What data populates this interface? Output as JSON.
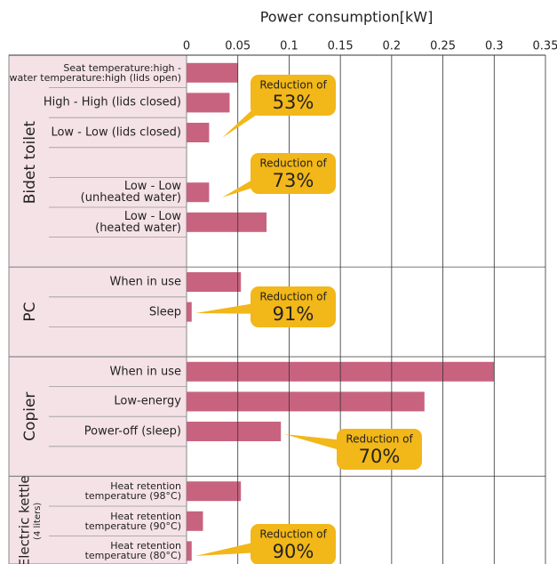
{
  "chart_data": {
    "type": "bar",
    "orientation": "horizontal",
    "x_label": "Power consumption[kW]",
    "xlim": [
      0,
      0.35
    ],
    "xticks": [
      0,
      0.05,
      0.1,
      0.15,
      0.2,
      0.25,
      0.3,
      0.35
    ],
    "grid": true,
    "color": "#c8637f",
    "groups": [
      {
        "name": "Bidet toilet",
        "categories": [
          "Seat temperature:high -\nwater temperature:high (lids open)",
          "High - High (lids closed)",
          "Low - Low (lids closed)",
          null,
          "Low - Low\n(unheated water)",
          "Low - Low\n(heated water)",
          null
        ],
        "values": [
          0.05,
          0.042,
          0.022,
          null,
          0.022,
          0.078,
          null
        ]
      },
      {
        "name": "PC",
        "categories": [
          "When in use",
          "Sleep",
          null
        ],
        "values": [
          0.053,
          0.005,
          null
        ]
      },
      {
        "name": "Copier",
        "categories": [
          "When in use",
          "Low-energy",
          "Power-off (sleep)",
          null
        ],
        "values": [
          0.3,
          0.232,
          0.092,
          null
        ]
      },
      {
        "name": "Electric kettle",
        "subname": "(4 liters)",
        "categories": [
          "Heat retention\ntemperature (98°C)",
          "Heat retention\ntemperature (90°C)",
          "Heat retention\ntemperature (80°C)"
        ],
        "values": [
          0.053,
          0.016,
          0.005
        ]
      }
    ],
    "annotations": [
      {
        "text": "Reduction of",
        "value": "53%"
      },
      {
        "text": "Reduction of",
        "value": "73%"
      },
      {
        "text": "Reduction of",
        "value": "91%"
      },
      {
        "text": "Reduction of",
        "value": "70%"
      },
      {
        "text": "Reduction of",
        "value": "90%"
      }
    ]
  }
}
